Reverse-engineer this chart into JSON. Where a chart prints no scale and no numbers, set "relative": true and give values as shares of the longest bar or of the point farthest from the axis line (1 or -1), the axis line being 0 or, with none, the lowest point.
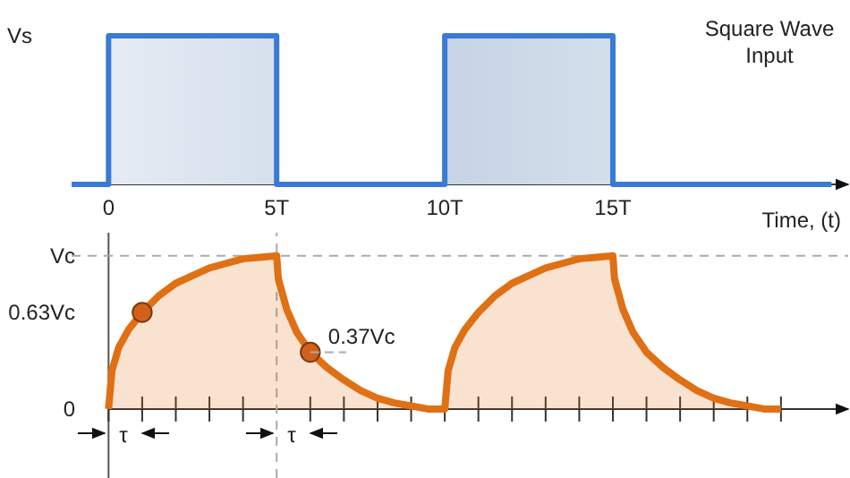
{
  "chart_data": [
    {
      "type": "line",
      "xlabel": "Time, (t)",
      "annotations": [
        "Square Wave Input",
        "Vs"
      ],
      "xlim": [
        -1.1,
        22
      ],
      "relative": true,
      "xticks": [
        0,
        {
          "value": 5,
          "label": "5T"
        },
        {
          "value": 10,
          "label": "10T"
        },
        {
          "value": 15,
          "label": "15T"
        }
      ],
      "series": [
        {
          "type": "area",
          "color": "#3a7ad6",
          "x": [
            -1.1,
            0,
            0,
            5,
            5,
            10,
            10,
            15,
            15,
            21.5
          ],
          "values": [
            0,
            0,
            1,
            1,
            0,
            0,
            1,
            1,
            0,
            0
          ]
        }
      ]
    },
    {
      "type": "line",
      "annotations": [
        {
          "text": "0.37Vc",
          "x": 6,
          "y": 0.37
        },
        "τ",
        "τ"
      ],
      "xlim": [
        -1.1,
        22
      ],
      "ylim": [
        -0.45,
        1.15
      ],
      "tick_labels": "y",
      "xticks": [
        {
          "value": 0,
          "label": null
        },
        {
          "value": 1,
          "label": null
        },
        {
          "value": 2,
          "label": null
        },
        {
          "value": 3,
          "label": null
        },
        {
          "value": 4,
          "label": null
        },
        {
          "value": 5,
          "label": null
        },
        {
          "value": 6,
          "label": null
        },
        {
          "value": 7,
          "label": null
        },
        {
          "value": 8,
          "label": null
        },
        {
          "value": 9,
          "label": null
        },
        {
          "value": 10,
          "label": null
        },
        {
          "value": 11,
          "label": null
        },
        {
          "value": 12,
          "label": null
        },
        {
          "value": 13,
          "label": null
        },
        {
          "value": 14,
          "label": null
        },
        {
          "value": 15,
          "label": null
        },
        {
          "value": 16,
          "label": null
        },
        {
          "value": 17,
          "label": null
        },
        {
          "value": 18,
          "label": null
        },
        {
          "value": 19,
          "label": null
        },
        {
          "value": 20,
          "label": null
        }
      ],
      "yticks": [
        0,
        {
          "value": 0.63,
          "label": "0.63Vc"
        },
        {
          "value": 1,
          "label": "Vc"
        }
      ],
      "ref_lines": [
        {
          "axis": "y",
          "value": 1,
          "label": null,
          "color": "#aaaaaa",
          "line_style": "dashed"
        },
        {
          "axis": "x",
          "value": 5,
          "label": null,
          "color": "#aaaaaa",
          "line_style": "dashed"
        }
      ],
      "series": [
        {
          "type": "area",
          "color": "#e07014",
          "x": [
            0,
            0.1,
            0.3,
            0.6,
            1,
            1.5,
            2,
            2.5,
            3,
            3.5,
            4,
            4.5,
            5,
            5.05,
            5.3,
            5.6,
            6,
            6.5,
            7,
            7.5,
            8,
            8.5,
            9,
            9.5,
            10,
            10.1,
            10.3,
            10.6,
            11,
            11.5,
            12,
            12.5,
            13,
            13.5,
            14,
            14.5,
            15,
            15.05,
            15.3,
            15.6,
            16,
            16.5,
            17,
            17.5,
            18,
            18.5,
            19,
            19.5,
            20
          ],
          "values": [
            0,
            0.25,
            0.4,
            0.52,
            0.63,
            0.74,
            0.82,
            0.87,
            0.92,
            0.95,
            0.98,
            0.99,
            1,
            0.85,
            0.65,
            0.5,
            0.37,
            0.27,
            0.19,
            0.12,
            0.07,
            0.04,
            0.02,
            0,
            0,
            0.25,
            0.4,
            0.52,
            0.63,
            0.74,
            0.82,
            0.87,
            0.92,
            0.95,
            0.98,
            0.99,
            1,
            0.85,
            0.65,
            0.5,
            0.37,
            0.27,
            0.19,
            0.12,
            0.07,
            0.04,
            0.02,
            0,
            0
          ]
        },
        {
          "type": "scatter",
          "color": "#d2601a",
          "marker": "circle",
          "x": [
            1,
            6
          ],
          "values": [
            0.63,
            0.37
          ]
        }
      ]
    }
  ]
}
